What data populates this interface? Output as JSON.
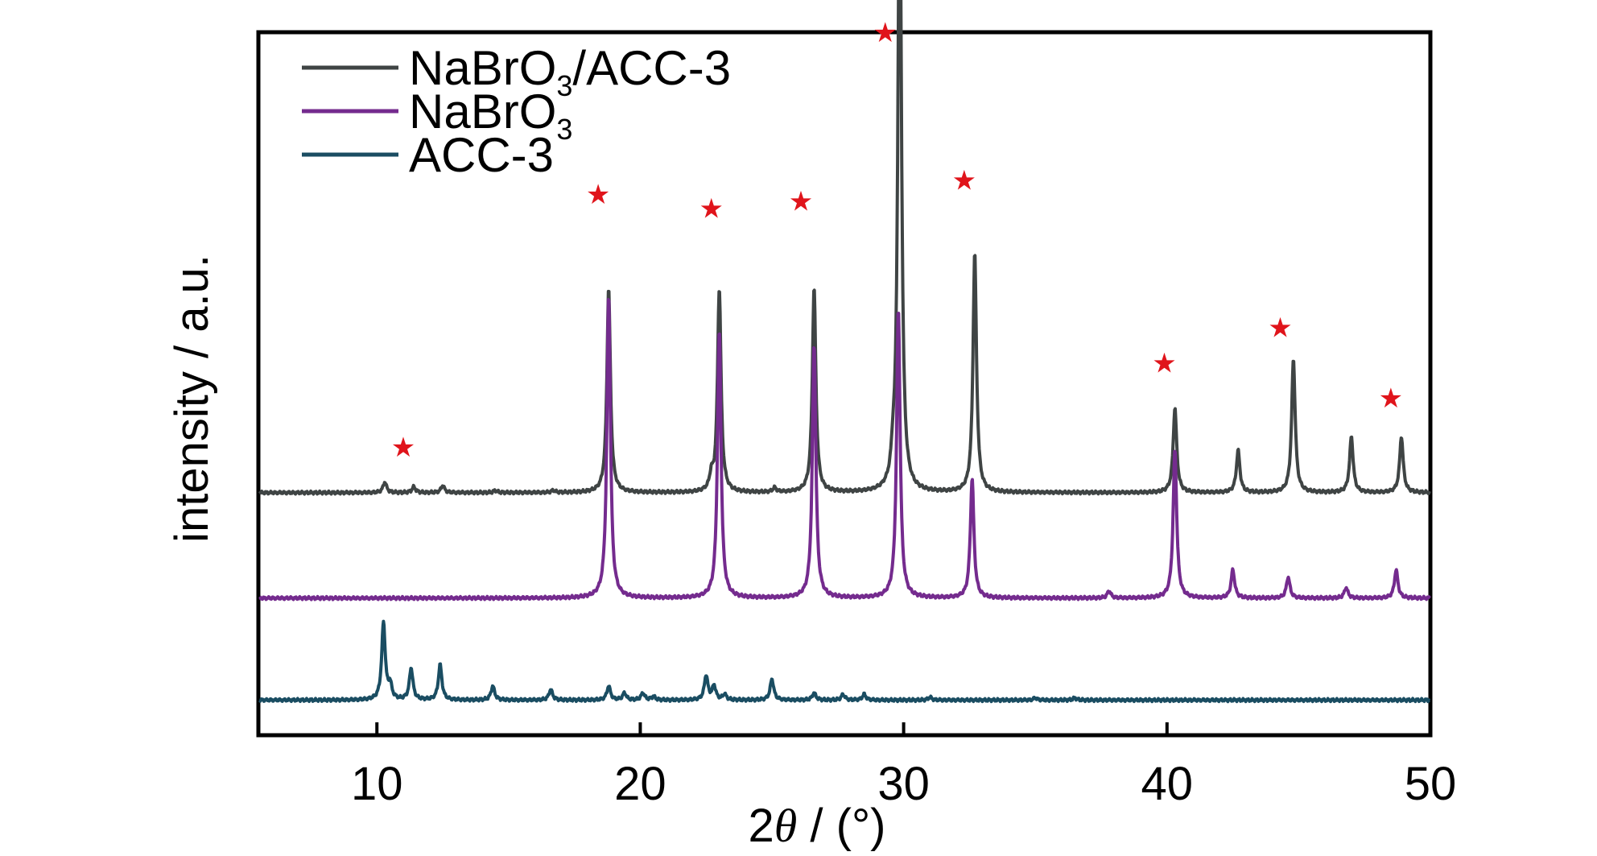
{
  "chart_data": {
    "type": "line",
    "xlabel_parts": {
      "lead": "2",
      "theta": "θ",
      "tail": " / (°)"
    },
    "ylabel": "intensity / a.u.",
    "xlim": [
      5.5,
      50
    ],
    "x_ticks": [
      10,
      20,
      30,
      40,
      50
    ],
    "y_ticks_shown": false,
    "grid": false,
    "legend_position": "top-left",
    "series": [
      {
        "name": "NaBrO3/ACC-3",
        "legend_parts": {
          "base": "NaBrO",
          "sub": "3",
          "tail": "/ACC-3"
        },
        "color": "#3f4444",
        "baseline": 0.345,
        "peaks": [
          [
            10.3,
            0.015
          ],
          [
            11.4,
            0.008
          ],
          [
            12.5,
            0.01
          ],
          [
            14.5,
            0.003
          ],
          [
            16.7,
            0.003
          ],
          [
            18.8,
            0.29
          ],
          [
            22.7,
            0.02
          ],
          [
            23.0,
            0.29
          ],
          [
            25.1,
            0.006
          ],
          [
            26.6,
            0.29
          ],
          [
            29.6,
            0.03
          ],
          [
            29.85,
            0.93
          ],
          [
            32.7,
            0.34
          ],
          [
            40.3,
            0.12
          ],
          [
            42.7,
            0.06
          ],
          [
            44.8,
            0.19
          ],
          [
            47.0,
            0.08
          ],
          [
            48.9,
            0.08
          ]
        ],
        "width": 0.08
      },
      {
        "name": "NaBrO3",
        "legend_parts": {
          "base": "NaBrO",
          "sub": "3",
          "tail": ""
        },
        "color": "#742b8e",
        "baseline": 0.195,
        "peaks": [
          [
            18.8,
            0.43
          ],
          [
            23.0,
            0.38
          ],
          [
            26.6,
            0.36
          ],
          [
            29.8,
            0.41
          ],
          [
            32.6,
            0.17
          ],
          [
            37.8,
            0.01
          ],
          [
            40.3,
            0.21
          ],
          [
            42.5,
            0.04
          ],
          [
            44.6,
            0.03
          ],
          [
            46.8,
            0.015
          ],
          [
            48.7,
            0.04
          ]
        ],
        "width": 0.08
      },
      {
        "name": "ACC-3",
        "legend_parts": {
          "base": "ACC-3",
          "sub": "",
          "tail": ""
        },
        "color": "#1a4d62",
        "baseline": 0.05,
        "peaks": [
          [
            10.25,
            0.11
          ],
          [
            10.5,
            0.02
          ],
          [
            11.3,
            0.045
          ],
          [
            12.4,
            0.05
          ],
          [
            14.4,
            0.02
          ],
          [
            16.6,
            0.015
          ],
          [
            18.8,
            0.02
          ],
          [
            19.4,
            0.01
          ],
          [
            20.1,
            0.01
          ],
          [
            20.5,
            0.005
          ],
          [
            22.5,
            0.035
          ],
          [
            22.8,
            0.02
          ],
          [
            23.2,
            0.008
          ],
          [
            25.0,
            0.03
          ],
          [
            26.6,
            0.01
          ],
          [
            27.7,
            0.008
          ],
          [
            28.5,
            0.008
          ],
          [
            31.0,
            0.004
          ],
          [
            35.0,
            0.003
          ],
          [
            36.5,
            0.003
          ]
        ],
        "width": 0.08
      }
    ],
    "marker": {
      "symbol": "★",
      "color": "#e0141b"
    },
    "star_markers": [
      11.0,
      18.4,
      22.7,
      26.1,
      29.3,
      32.3,
      39.9,
      44.3,
      48.5
    ],
    "star_heights": [
      0.41,
      0.77,
      0.75,
      0.76,
      1.0,
      0.79,
      0.53,
      0.58,
      0.48
    ]
  }
}
